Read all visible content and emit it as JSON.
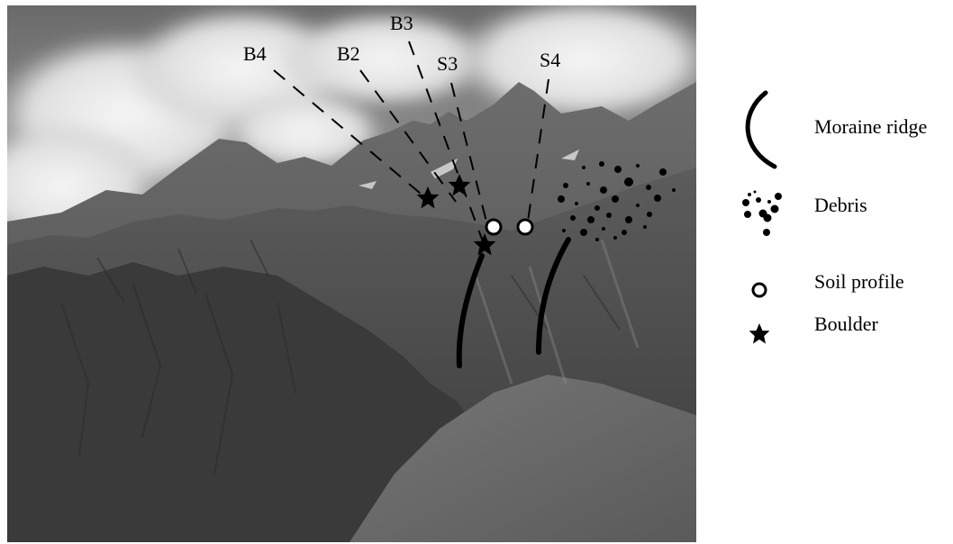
{
  "site_labels": {
    "b4": "B4",
    "b2": "B2",
    "b3": "B3",
    "s3": "S3",
    "s4": "S4"
  },
  "legend": {
    "moraine_ridge": "Moraine ridge",
    "debris": "Debris",
    "soil_profile": "Soil profile",
    "boulder": "Boulder"
  },
  "colors": {
    "marker": "#000000",
    "soil_fill": "#ffffff"
  },
  "icons": {
    "moraine_ridge": "arc-line-icon",
    "debris": "dots-icon",
    "soil_profile": "circle-icon",
    "boulder": "star-icon"
  }
}
